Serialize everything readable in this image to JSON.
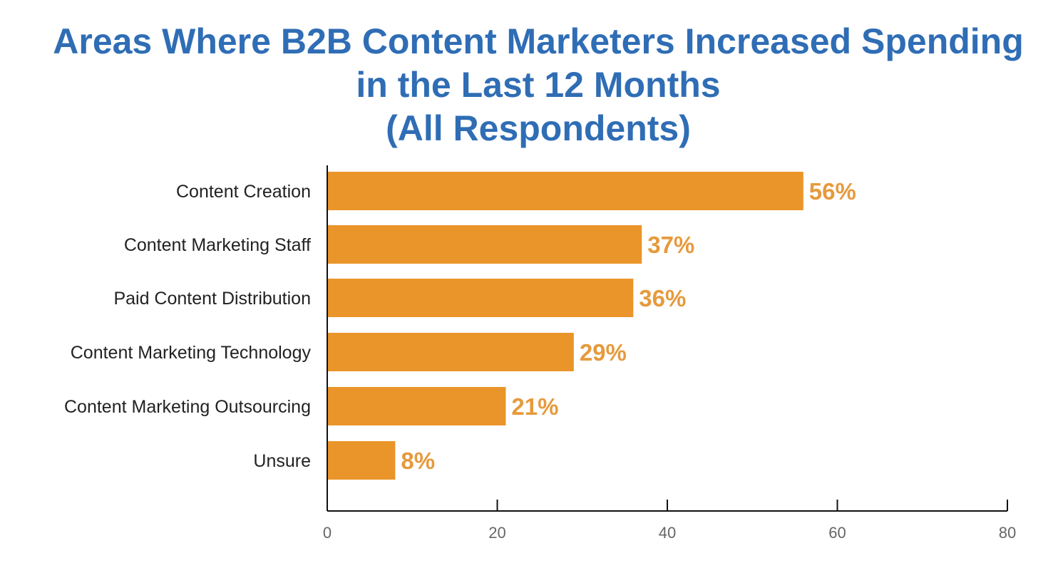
{
  "chart_data": {
    "type": "bar",
    "orientation": "horizontal",
    "title_lines": [
      "Areas Where B2B Content Marketers Increased Spending",
      "in the Last 12 Months",
      "(All Respondents)"
    ],
    "categories": [
      "Content Creation",
      "Content Marketing Staff",
      "Paid Content Distribution",
      "Content Marketing Technology",
      "Content Marketing Outsourcing",
      "Unsure"
    ],
    "values": [
      56,
      37,
      36,
      29,
      21,
      8
    ],
    "data_labels": [
      "56%",
      "37%",
      "36%",
      "29%",
      "21%",
      "8%"
    ],
    "xlim": [
      0,
      80
    ],
    "xticks": [
      "0",
      "20",
      "40",
      "60",
      "80"
    ],
    "grid": false,
    "colors": {
      "bar": "#EA952A",
      "label": "#E69A3C",
      "title": "#2F6DB5"
    }
  }
}
